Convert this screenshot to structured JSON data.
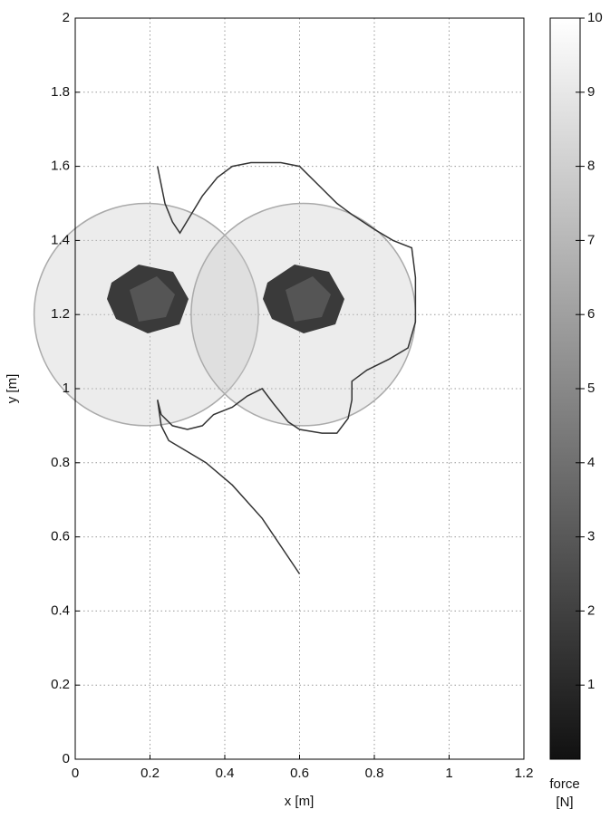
{
  "chart_data": {
    "type": "line",
    "xlabel": "x [m]",
    "ylabel": "y [m]",
    "xlim": [
      0,
      1.2
    ],
    "ylim": [
      0,
      2
    ],
    "xticks": [
      0,
      0.2,
      0.4,
      0.6,
      0.8,
      1,
      1.2
    ],
    "yticks": [
      0,
      0.2,
      0.4,
      0.6,
      0.8,
      1,
      1.2,
      1.4,
      1.6,
      1.8,
      2
    ],
    "grid": true,
    "series": [
      {
        "color": "#333333",
        "x": [
          0.6,
          0.5,
          0.42,
          0.35,
          0.3,
          0.25,
          0.23,
          0.22,
          0.23,
          0.26,
          0.3,
          0.34,
          0.37,
          0.42,
          0.46,
          0.5,
          0.53,
          0.57,
          0.6,
          0.66,
          0.7,
          0.73,
          0.74,
          0.74,
          0.78,
          0.84,
          0.89,
          0.91,
          0.91,
          0.9,
          0.85,
          0.8,
          0.74,
          0.7,
          0.66,
          0.6,
          0.55,
          0.47,
          0.42,
          0.38,
          0.34,
          0.31,
          0.28,
          0.26,
          0.24,
          0.23,
          0.22
        ],
        "values": [
          0.5,
          0.65,
          0.74,
          0.8,
          0.83,
          0.86,
          0.9,
          0.97,
          0.93,
          0.9,
          0.89,
          0.9,
          0.93,
          0.95,
          0.98,
          1.0,
          0.96,
          0.91,
          0.89,
          0.88,
          0.88,
          0.92,
          0.97,
          1.02,
          1.05,
          1.08,
          1.11,
          1.18,
          1.3,
          1.38,
          1.4,
          1.43,
          1.47,
          1.5,
          1.54,
          1.6,
          1.61,
          1.61,
          1.6,
          1.57,
          1.52,
          1.47,
          1.42,
          1.45,
          1.5,
          1.55,
          1.6
        ]
      }
    ],
    "circles": [
      {
        "x": 0.19,
        "y": 1.2,
        "r": 0.3
      },
      {
        "x": 0.61,
        "y": 1.2,
        "r": 0.3
      }
    ],
    "colorbar": {
      "lim": [
        0,
        10
      ],
      "ticks": [
        1,
        2,
        3,
        4,
        5,
        6,
        7,
        8,
        9,
        10
      ],
      "label": [
        "force",
        "[N]"
      ]
    }
  }
}
